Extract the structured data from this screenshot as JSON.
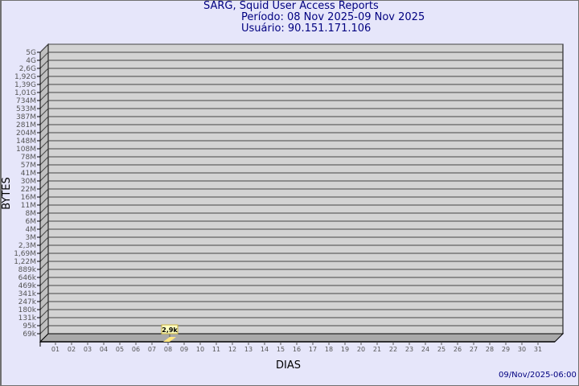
{
  "title": "SARG, Squid User Access Reports",
  "period": "Período: 08 Nov 2025-09 Nov 2025",
  "user": "Usuário: 90.151.171.106",
  "timestamp": "09/Nov/2025-06:00",
  "colors": {
    "background": "#e6e6fa",
    "plot": "#d3d3d3",
    "title": "#000080",
    "bar": "#ffe680"
  },
  "chart_data": {
    "type": "bar",
    "xlabel": "DIAS",
    "ylabel": "BYTES",
    "x_ticks": [
      "01",
      "02",
      "03",
      "04",
      "05",
      "06",
      "07",
      "08",
      "09",
      "10",
      "11",
      "12",
      "13",
      "14",
      "15",
      "16",
      "17",
      "18",
      "19",
      "20",
      "21",
      "22",
      "23",
      "24",
      "25",
      "26",
      "27",
      "28",
      "29",
      "30",
      "31"
    ],
    "y_ticks": [
      "5G",
      "4G",
      "2,6G",
      "1,92G",
      "1,39G",
      "1,01G",
      "734M",
      "533M",
      "387M",
      "281M",
      "204M",
      "148M",
      "108M",
      "78M",
      "57M",
      "41M",
      "30M",
      "22M",
      "16M",
      "11M",
      "8M",
      "6M",
      "4M",
      "3M",
      "2,3M",
      "1,69M",
      "1,22M",
      "889k",
      "646k",
      "469k",
      "341k",
      "247k",
      "180k",
      "131k",
      "95k",
      "69k"
    ],
    "y_scale": "log",
    "grid": true,
    "bars": [
      {
        "day": "08",
        "value": 2900,
        "label": "2,9k"
      }
    ]
  }
}
